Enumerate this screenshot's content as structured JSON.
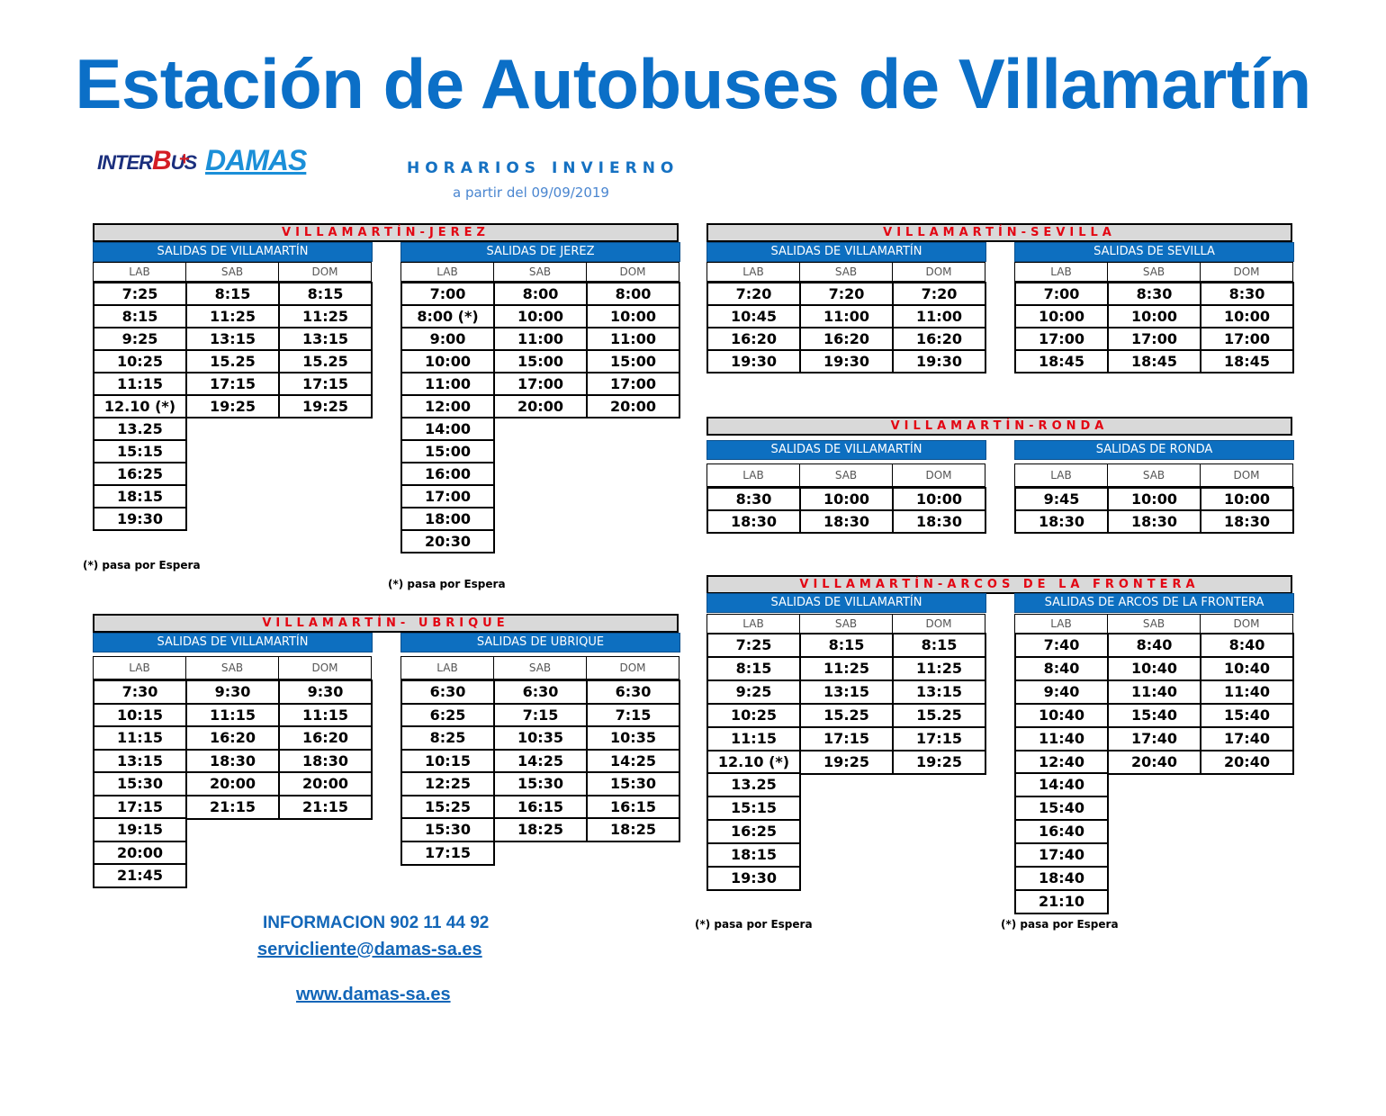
{
  "title": "Estación de Autobuses de Villamartín",
  "logos": {
    "interbus": "INTERBUS",
    "plus": "+",
    "damas": "DAMAS"
  },
  "season": "HORARIOS INVIERNO",
  "valid_from": "a partir del 09/09/2019",
  "days": [
    "LAB",
    "SAB",
    "DOM"
  ],
  "note": "(*) pasa por Espera",
  "routes": {
    "jerez": {
      "title": "VILLAMARTÍN-JEREZ",
      "out_label": "SALIDAS DE VILLAMARTÍN",
      "in_label": "SALIDAS DE JEREZ",
      "out": [
        [
          "7:25",
          "8:15",
          "8:15"
        ],
        [
          "8:15",
          "11:25",
          "11:25"
        ],
        [
          "9:25",
          "13:15",
          "13:15"
        ],
        [
          "10:25",
          "15.25",
          "15.25"
        ],
        [
          "11:15",
          "17:15",
          "17:15"
        ],
        [
          "12.10 (*)",
          "19:25",
          "19:25"
        ],
        [
          "13.25"
        ],
        [
          "15:15"
        ],
        [
          "16:25"
        ],
        [
          "18:15"
        ],
        [
          "19:30"
        ]
      ],
      "in": [
        [
          "7:00",
          "8:00",
          "8:00"
        ],
        [
          "8:00 (*)",
          "10:00",
          "10:00"
        ],
        [
          "9:00",
          "11:00",
          "11:00"
        ],
        [
          "10:00",
          "15:00",
          "15:00"
        ],
        [
          "11:00",
          "17:00",
          "17:00"
        ],
        [
          "12:00",
          "20:00",
          "20:00"
        ],
        [
          "14:00"
        ],
        [
          "15:00"
        ],
        [
          "16:00"
        ],
        [
          "17:00"
        ],
        [
          "18:00"
        ],
        [
          "20:30"
        ]
      ]
    },
    "sevilla": {
      "title": "VILLAMARTÍN-SEVILLA",
      "out_label": "SALIDAS DE VILLAMARTÍN",
      "in_label": "SALIDAS DE SEVILLA",
      "out": [
        [
          "7:20",
          "7:20",
          "7:20"
        ],
        [
          "10:45",
          "11:00",
          "11:00"
        ],
        [
          "16:20",
          "16:20",
          "16:20"
        ],
        [
          "19:30",
          "19:30",
          "19:30"
        ]
      ],
      "in": [
        [
          "7:00",
          "8:30",
          "8:30"
        ],
        [
          "10:00",
          "10:00",
          "10:00"
        ],
        [
          "17:00",
          "17:00",
          "17:00"
        ],
        [
          "18:45",
          "18:45",
          "18:45"
        ]
      ]
    },
    "ronda": {
      "title": "VILLAMARTÍN-RONDA",
      "out_label": "SALIDAS DE VILLAMARTÍN",
      "in_label": "SALIDAS DE RONDA",
      "out": [
        [
          "8:30",
          "10:00",
          "10:00"
        ],
        [
          "18:30",
          "18:30",
          "18:30"
        ]
      ],
      "in": [
        [
          "9:45",
          "10:00",
          "10:00"
        ],
        [
          "18:30",
          "18:30",
          "18:30"
        ]
      ]
    },
    "ubrique": {
      "title": "VILLAMARTÍN- UBRIQUE",
      "out_label": "SALIDAS DE VILLAMARTÍN",
      "in_label": "SALIDAS DE UBRIQUE",
      "out": [
        [
          "7:30",
          "9:30",
          "9:30"
        ],
        [
          "10:15",
          "11:15",
          "11:15"
        ],
        [
          "11:15",
          "16:20",
          "16:20"
        ],
        [
          "13:15",
          "18:30",
          "18:30"
        ],
        [
          "15:30",
          "20:00",
          "20:00"
        ],
        [
          "17:15",
          "21:15",
          "21:15"
        ],
        [
          "19:15"
        ],
        [
          "20:00"
        ],
        [
          "21:45"
        ]
      ],
      "in": [
        [
          "6:30",
          "6:30",
          "6:30"
        ],
        [
          "6:25",
          "7:15",
          "7:15"
        ],
        [
          "8:25",
          "10:35",
          "10:35"
        ],
        [
          "10:15",
          "14:25",
          "14:25"
        ],
        [
          "12:25",
          "15:30",
          "15:30"
        ],
        [
          "15:25",
          "16:15",
          "16:15"
        ],
        [
          "15:30",
          "18:25",
          "18:25"
        ],
        [
          "17:15"
        ]
      ]
    },
    "arcos": {
      "title": "VILLAMARTÍN-ARCOS DE LA FRONTERA",
      "out_label": "SALIDAS DE VILLAMARTÍN",
      "in_label": "SALIDAS DE ARCOS DE LA FRONTERA",
      "out": [
        [
          "7:25",
          "8:15",
          "8:15"
        ],
        [
          "8:15",
          "11:25",
          "11:25"
        ],
        [
          "9:25",
          "13:15",
          "13:15"
        ],
        [
          "10:25",
          "15.25",
          "15.25"
        ],
        [
          "11:15",
          "17:15",
          "17:15"
        ],
        [
          "12.10 (*)",
          "19:25",
          "19:25"
        ],
        [
          "13.25"
        ],
        [
          "15:15"
        ],
        [
          "16:25"
        ],
        [
          "18:15"
        ],
        [
          "19:30"
        ]
      ],
      "in": [
        [
          "7:40",
          "8:40",
          "8:40"
        ],
        [
          "8:40",
          "10:40",
          "10:40"
        ],
        [
          "9:40",
          "11:40",
          "11:40"
        ],
        [
          "10:40",
          "15:40",
          "15:40"
        ],
        [
          "11:40",
          "17:40",
          "17:40"
        ],
        [
          "12:40",
          "20:40",
          "20:40"
        ],
        [
          "14:40"
        ],
        [
          "15:40"
        ],
        [
          "16:40"
        ],
        [
          "17:40"
        ],
        [
          "18:40"
        ],
        [
          "21:10"
        ]
      ]
    }
  },
  "contact": {
    "phone": "INFORMACION  902 11 44 92",
    "email": "servicliente@damas-sa.es",
    "web": "www.damas-sa.es"
  }
}
